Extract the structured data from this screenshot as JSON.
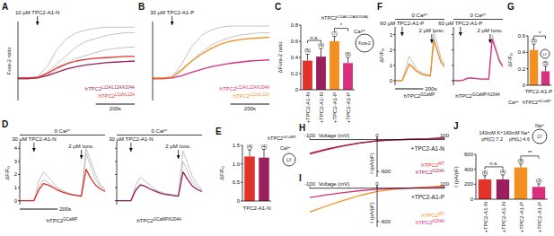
{
  "chart_data": [
    {
      "type": "line",
      "title": "A",
      "y_label": "Fura-2 ratio",
      "x": [
        0,
        50,
        100,
        150,
        200,
        250,
        300,
        350,
        400,
        450,
        500,
        550,
        600
      ],
      "xlim": [
        0,
        600
      ],
      "ylim": [
        0.3,
        1.7
      ],
      "tick_labels": false,
      "legend": "lower right",
      "annotations": [
        {
          "text": "10 µM TPC2-A1-N",
          "x": 100
        }
      ],
      "scale_bar": {
        "value": 200,
        "label": "200s"
      },
      "series": [
        {
          "color": "#b4b4b4",
          "values": [
            0.7,
            0.7,
            0.72,
            0.9,
            1.2,
            1.4,
            1.5,
            1.55,
            1.58,
            1.6,
            1.6,
            1.6,
            1.6
          ]
        },
        {
          "color": "#b4b4b4",
          "values": [
            0.68,
            0.68,
            0.7,
            0.8,
            0.95,
            1.1,
            1.25,
            1.35,
            1.4,
            1.45,
            1.48,
            1.5,
            1.5
          ]
        },
        {
          "color": "#b4b4b4",
          "values": [
            0.7,
            0.7,
            0.71,
            0.75,
            0.85,
            0.95,
            1.05,
            1.1,
            1.15,
            1.2,
            1.22,
            1.24,
            1.25
          ]
        },
        {
          "name": "hTPC2L11A/L12A/K204A",
          "color": "#9b1f5e",
          "values": [
            0.69,
            0.69,
            0.7,
            0.74,
            0.8,
            0.86,
            0.9,
            0.93,
            0.95,
            0.97,
            0.98,
            0.99,
            1.0
          ]
        },
        {
          "name": "hTPC2L11A/L12A",
          "color": "#e2332b",
          "values": [
            0.7,
            0.7,
            0.71,
            0.78,
            0.88,
            0.95,
            1.0,
            1.03,
            1.05,
            1.06,
            1.07,
            1.08,
            1.08
          ]
        }
      ]
    },
    {
      "type": "line",
      "title": "B",
      "x": [
        0,
        50,
        100,
        150,
        200,
        250,
        300,
        350,
        400,
        450,
        500,
        550,
        600
      ],
      "xlim": [
        0,
        600
      ],
      "ylim": [
        0.3,
        1.7
      ],
      "tick_labels": false,
      "legend": "lower right",
      "annotations": [
        {
          "text": "30 µM TPC2-A1-P",
          "x": 100
        }
      ],
      "scale_bar": {
        "value": 200,
        "label": "200s"
      },
      "series": [
        {
          "color": "#b4b4b4",
          "values": [
            0.7,
            0.7,
            0.72,
            0.95,
            1.25,
            1.45,
            1.55,
            1.6,
            1.62,
            1.62,
            1.62,
            1.62,
            1.62
          ]
        },
        {
          "color": "#b4b4b4",
          "values": [
            0.68,
            0.68,
            0.7,
            0.82,
            1.0,
            1.15,
            1.28,
            1.36,
            1.42,
            1.46,
            1.48,
            1.5,
            1.5
          ]
        },
        {
          "name": "hTPC2L11A/L12A/K204A",
          "color": "#d9307d",
          "values": [
            0.69,
            0.69,
            0.7,
            0.74,
            0.8,
            0.85,
            0.9,
            0.93,
            0.96,
            0.98,
            1.0,
            1.01,
            1.02
          ]
        },
        {
          "name": "hTPC2L11A/L12A",
          "color": "#f3901f",
          "values": [
            0.7,
            0.7,
            0.72,
            0.85,
            1.0,
            1.12,
            1.22,
            1.3,
            1.35,
            1.38,
            1.4,
            1.41,
            1.42
          ]
        }
      ]
    },
    {
      "type": "bar",
      "title": "C",
      "y_label": "ΔFura-2 ratio",
      "categories": [
        "+TPC2-A1-N",
        "+TPC2-A1-N",
        "+TPC2-A1-P",
        "+TPC2-A1-P"
      ],
      "values": [
        0.36,
        0.41,
        0.6,
        0.33
      ],
      "errors": [
        0.08,
        0.1,
        0.06,
        0.07
      ],
      "colors": [
        "#e2332b",
        "#9b1f5e",
        "#f3901f",
        "#d9307d"
      ],
      "n_labels": [
        "(5)",
        "(4)",
        "(7)",
        "(6)"
      ],
      "ylim": [
        0,
        0.8
      ],
      "yticks": [
        0,
        0.2,
        0.4,
        0.6,
        0.8
      ],
      "significance": [
        {
          "from": 0,
          "to": 1,
          "label": "n.s."
        },
        {
          "from": 2,
          "to": 3,
          "label": "*"
        }
      ],
      "inset": [
        "Ca²⁺",
        "hTPC2L11A/L12A(K204A)",
        "Fura-2"
      ]
    },
    {
      "type": "line",
      "title": "D",
      "y_label": "ΔF/F₀",
      "x_label": "hTPC2GCaMP",
      "x": [
        0,
        25,
        50,
        75,
        100,
        125,
        150,
        175,
        200,
        225,
        250,
        275,
        300,
        325,
        350,
        375,
        400,
        425,
        450
      ],
      "xlim": [
        0,
        450
      ],
      "ylim": [
        -0.3,
        4.5
      ],
      "yticks": [
        0,
        1,
        2,
        3,
        4
      ],
      "annotations": [
        {
          "text": "0 Ca²⁺"
        },
        {
          "text": "30 µM TPC2-A1-N",
          "x": 75
        },
        {
          "text": "2 µM Iono.",
          "x": 325
        }
      ],
      "scale_bar": {
        "value": 200,
        "label": "200s"
      },
      "series": [
        {
          "color": "#b4b4b4",
          "values": [
            0,
            0,
            0,
            0,
            1.5,
            2.2,
            1.8,
            1.4,
            1.0,
            0.8,
            0.6,
            0.5,
            0.45,
            0.4,
            3.6,
            2.6,
            1.6,
            1.1,
            0.8
          ]
        },
        {
          "color": "#b4b4b4",
          "values": [
            0,
            0,
            0,
            0,
            1.0,
            1.6,
            1.4,
            1.1,
            0.9,
            0.7,
            0.6,
            0.5,
            0.4,
            0.4,
            4.0,
            3.0,
            2.0,
            1.2,
            0.9
          ]
        },
        {
          "color": "#e2332b",
          "values": [
            0,
            0,
            0,
            0,
            0.8,
            1.3,
            1.2,
            1.0,
            0.8,
            0.65,
            0.55,
            0.45,
            0.4,
            0.35,
            2.4,
            1.7,
            1.2,
            0.9,
            0.7
          ]
        }
      ]
    },
    {
      "type": "line",
      "x_label": "hTPC2GCaMP/K204A",
      "x": [
        0,
        25,
        50,
        75,
        100,
        125,
        150,
        175,
        200,
        225,
        250,
        275,
        300,
        325,
        350,
        375,
        400,
        425,
        450
      ],
      "xlim": [
        0,
        450
      ],
      "ylim": [
        -0.3,
        4.5
      ],
      "yticks": [
        0,
        1,
        2,
        3,
        4
      ],
      "tick_labels": false,
      "annotations": [
        {
          "text": "0 Ca²⁺"
        },
        {
          "text": "30 µM TPC2-A1-N",
          "x": 75
        },
        {
          "text": "2 µM Iono.",
          "x": 325
        }
      ],
      "series": [
        {
          "color": "#b4b4b4",
          "values": [
            0,
            0,
            0,
            0,
            1.2,
            1.8,
            1.5,
            1.2,
            0.9,
            0.7,
            0.6,
            0.5,
            0.45,
            0.4,
            3.8,
            2.8,
            1.8,
            1.2,
            0.9
          ]
        },
        {
          "color": "#b4b4b4",
          "values": [
            0,
            0,
            0,
            0,
            0.9,
            1.3,
            1.1,
            0.9,
            0.7,
            0.6,
            0.5,
            0.45,
            0.4,
            0.35,
            3.0,
            2.2,
            1.4,
            1.0,
            0.8
          ]
        },
        {
          "color": "#9b1f5e",
          "values": [
            0,
            0,
            0,
            0,
            0.8,
            1.2,
            1.1,
            0.9,
            0.75,
            0.6,
            0.5,
            0.45,
            0.4,
            0.35,
            2.2,
            1.6,
            1.1,
            0.85,
            0.7
          ]
        }
      ]
    },
    {
      "type": "bar",
      "title": "E",
      "y_label": "ΔF/F₀",
      "x_label": "TPC2-A1-N",
      "categories": [
        null,
        null
      ],
      "values": [
        1.2,
        1.17
      ],
      "errors": [
        0.18,
        0.22
      ],
      "colors": [
        "#e2332b",
        "#9b1f5e"
      ],
      "n_labels": [
        "(4)",
        "(4)"
      ],
      "ylim": [
        0,
        1.5
      ],
      "yticks": [
        0,
        0.5,
        {
          "value": 1,
          "label": "1.0"
        },
        1.5
      ],
      "inset": [
        "Ca²⁺",
        "hTPC2GCaMP",
        "LY"
      ]
    },
    {
      "type": "line",
      "title": "F",
      "y_label": "ΔF/F₀",
      "x_label": "hTPC2GCaMP",
      "x": [
        0,
        25,
        50,
        75,
        100,
        125,
        150,
        175,
        200,
        225,
        250,
        275,
        300,
        325,
        350
      ],
      "xlim": [
        0,
        350
      ],
      "ylim": [
        -0.3,
        3.5
      ],
      "yticks": [
        0,
        1,
        2,
        3
      ],
      "annotations": [
        {
          "text": "0 Ca²⁺"
        },
        {
          "text": "60 µM TPC2-A1-P",
          "x": 50
        },
        {
          "text": "2 µM Iono.",
          "x": 260
        }
      ],
      "scale_bar": {
        "value": 200,
        "label": "200s"
      },
      "series": [
        {
          "color": "#b4b4b4",
          "values": [
            0,
            0,
            0,
            0.8,
            1.6,
            1.2,
            0.8,
            0.6,
            0.5,
            0.4,
            0.35,
            2.8,
            2.0,
            1.3,
            1.0
          ]
        },
        {
          "color": "#b4b4b4",
          "values": [
            0,
            0,
            0,
            0.5,
            1.0,
            0.8,
            0.6,
            0.45,
            0.35,
            0.3,
            0.3,
            3.2,
            2.4,
            1.5,
            1.1
          ]
        },
        {
          "color": "#f3901f",
          "values": [
            0,
            0,
            0,
            0.5,
            1.1,
            0.9,
            0.65,
            0.5,
            0.4,
            0.35,
            0.3,
            2.6,
            1.9,
            1.2,
            0.9
          ]
        }
      ]
    },
    {
      "type": "line",
      "x_label": "hTPC2GCaMP:K204A",
      "x": [
        0,
        25,
        50,
        75,
        100,
        125,
        150,
        175,
        200,
        225,
        250,
        275,
        300,
        325,
        350
      ],
      "xlim": [
        0,
        350
      ],
      "ylim": [
        -0.3,
        3.5
      ],
      "yticks": [
        0,
        1,
        2,
        3
      ],
      "tick_labels": false,
      "annotations": [
        {
          "text": "0 Ca²⁺"
        },
        {
          "text": "60 µM TPC2-A1-P",
          "x": 50
        },
        {
          "text": "2 µM Iono.",
          "x": 260
        }
      ],
      "series": [
        {
          "color": "#b4b4b4",
          "values": [
            0,
            0,
            0,
            0.1,
            0.2,
            0.2,
            0.15,
            0.15,
            0.1,
            0.1,
            0.1,
            3.0,
            2.2,
            1.4,
            1.0
          ]
        },
        {
          "color": "#d9307d",
          "values": [
            0,
            0,
            0,
            0.05,
            0.15,
            0.18,
            0.15,
            0.12,
            0.1,
            0.1,
            0.1,
            2.7,
            2.0,
            1.3,
            0.9
          ]
        }
      ]
    },
    {
      "type": "bar",
      "title": "G",
      "y_label": "ΔF/F₀",
      "x_label": "TPC2-A1-P",
      "categories": [
        null,
        null
      ],
      "values": [
        0.43,
        0.17
      ],
      "errors": [
        0.07,
        0.06
      ],
      "colors": [
        "#f3901f",
        "#d9307d"
      ],
      "n_labels": [
        "(5)",
        "(5)"
      ],
      "ylim": [
        0,
        0.6
      ],
      "yticks": [
        0,
        0.2,
        0.4,
        0.6
      ],
      "significance": [
        {
          "from": 0,
          "to": 1,
          "label": "*"
        }
      ],
      "inset": [
        "Ca²⁺",
        "hTPC2GCaMP",
        "LY"
      ]
    },
    {
      "type": "line",
      "title": "H",
      "x_label": "Voltage (mV)",
      "y_label": "I (pA/pF)",
      "x": [
        -100,
        -75,
        -50,
        -25,
        0,
        25,
        50,
        75,
        100
      ],
      "xlim": [
        -100,
        100
      ],
      "ylim": [
        -700,
        60
      ],
      "xticks": [
        -100,
        0,
        100
      ],
      "yticks": [
        -600
      ],
      "legend": "lower right",
      "annotations": [
        {
          "text": "+TPC2-A1-N"
        }
      ],
      "series": [
        {
          "name": "hTPC2WT",
          "color": "#e2332b",
          "values": [
            -270,
            -190,
            -120,
            -65,
            -25,
            -5,
            5,
            15,
            35
          ]
        },
        {
          "name": "hTPC2K204A",
          "color": "#9b1f5e",
          "values": [
            -260,
            -180,
            -115,
            -60,
            -22,
            -5,
            5,
            12,
            30
          ]
        }
      ]
    },
    {
      "type": "line",
      "title": "I",
      "x_label": "Voltage (mV)",
      "y_label": "I (pA/pF)",
      "x": [
        -100,
        -75,
        -50,
        -25,
        0,
        25,
        50,
        75,
        100
      ],
      "xlim": [
        -100,
        100
      ],
      "ylim": [
        -700,
        60
      ],
      "xticks": [
        -100,
        0,
        100
      ],
      "yticks": [
        -600
      ],
      "legend": "lower right",
      "annotations": [
        {
          "text": "+TPC2-A1-P"
        }
      ],
      "series": [
        {
          "name": "hTPC2WT",
          "color": "#f3901f",
          "values": [
            -430,
            -320,
            -220,
            -130,
            -60,
            -20,
            5,
            20,
            40
          ]
        },
        {
          "name": "hTPC2K204A",
          "color": "#d9307d",
          "values": [
            -170,
            -120,
            -80,
            -45,
            -18,
            -5,
            3,
            10,
            20
          ]
        }
      ]
    },
    {
      "type": "bar",
      "title": "J",
      "y_label": "I (pA/pF)",
      "categories": [
        "+TPC2-A1-N",
        "+TPC2-A1-N",
        "+TPC2-A1-P",
        "+TPC2-A1-P"
      ],
      "values": [
        265,
        265,
        425,
        165
      ],
      "errors": [
        50,
        60,
        45,
        40
      ],
      "colors": [
        "#e2332b",
        "#9b1f5e",
        "#f3901f",
        "#d9307d"
      ],
      "n_labels": [
        "(6)",
        "(4)",
        "(8)",
        "(3)"
      ],
      "ylim": [
        0,
        600
      ],
      "yticks": [
        0,
        200,
        400,
        600
      ],
      "significance": [
        {
          "from": 0,
          "to": 1,
          "label": "n.s."
        },
        {
          "from": 2,
          "to": 3,
          "label": "**"
        }
      ],
      "inset": [
        "Na⁺",
        "140mM K⁺",
        "pH(C) 7.2",
        "140mM Na⁺",
        "pH(L) 4.6",
        "LY"
      ]
    }
  ]
}
